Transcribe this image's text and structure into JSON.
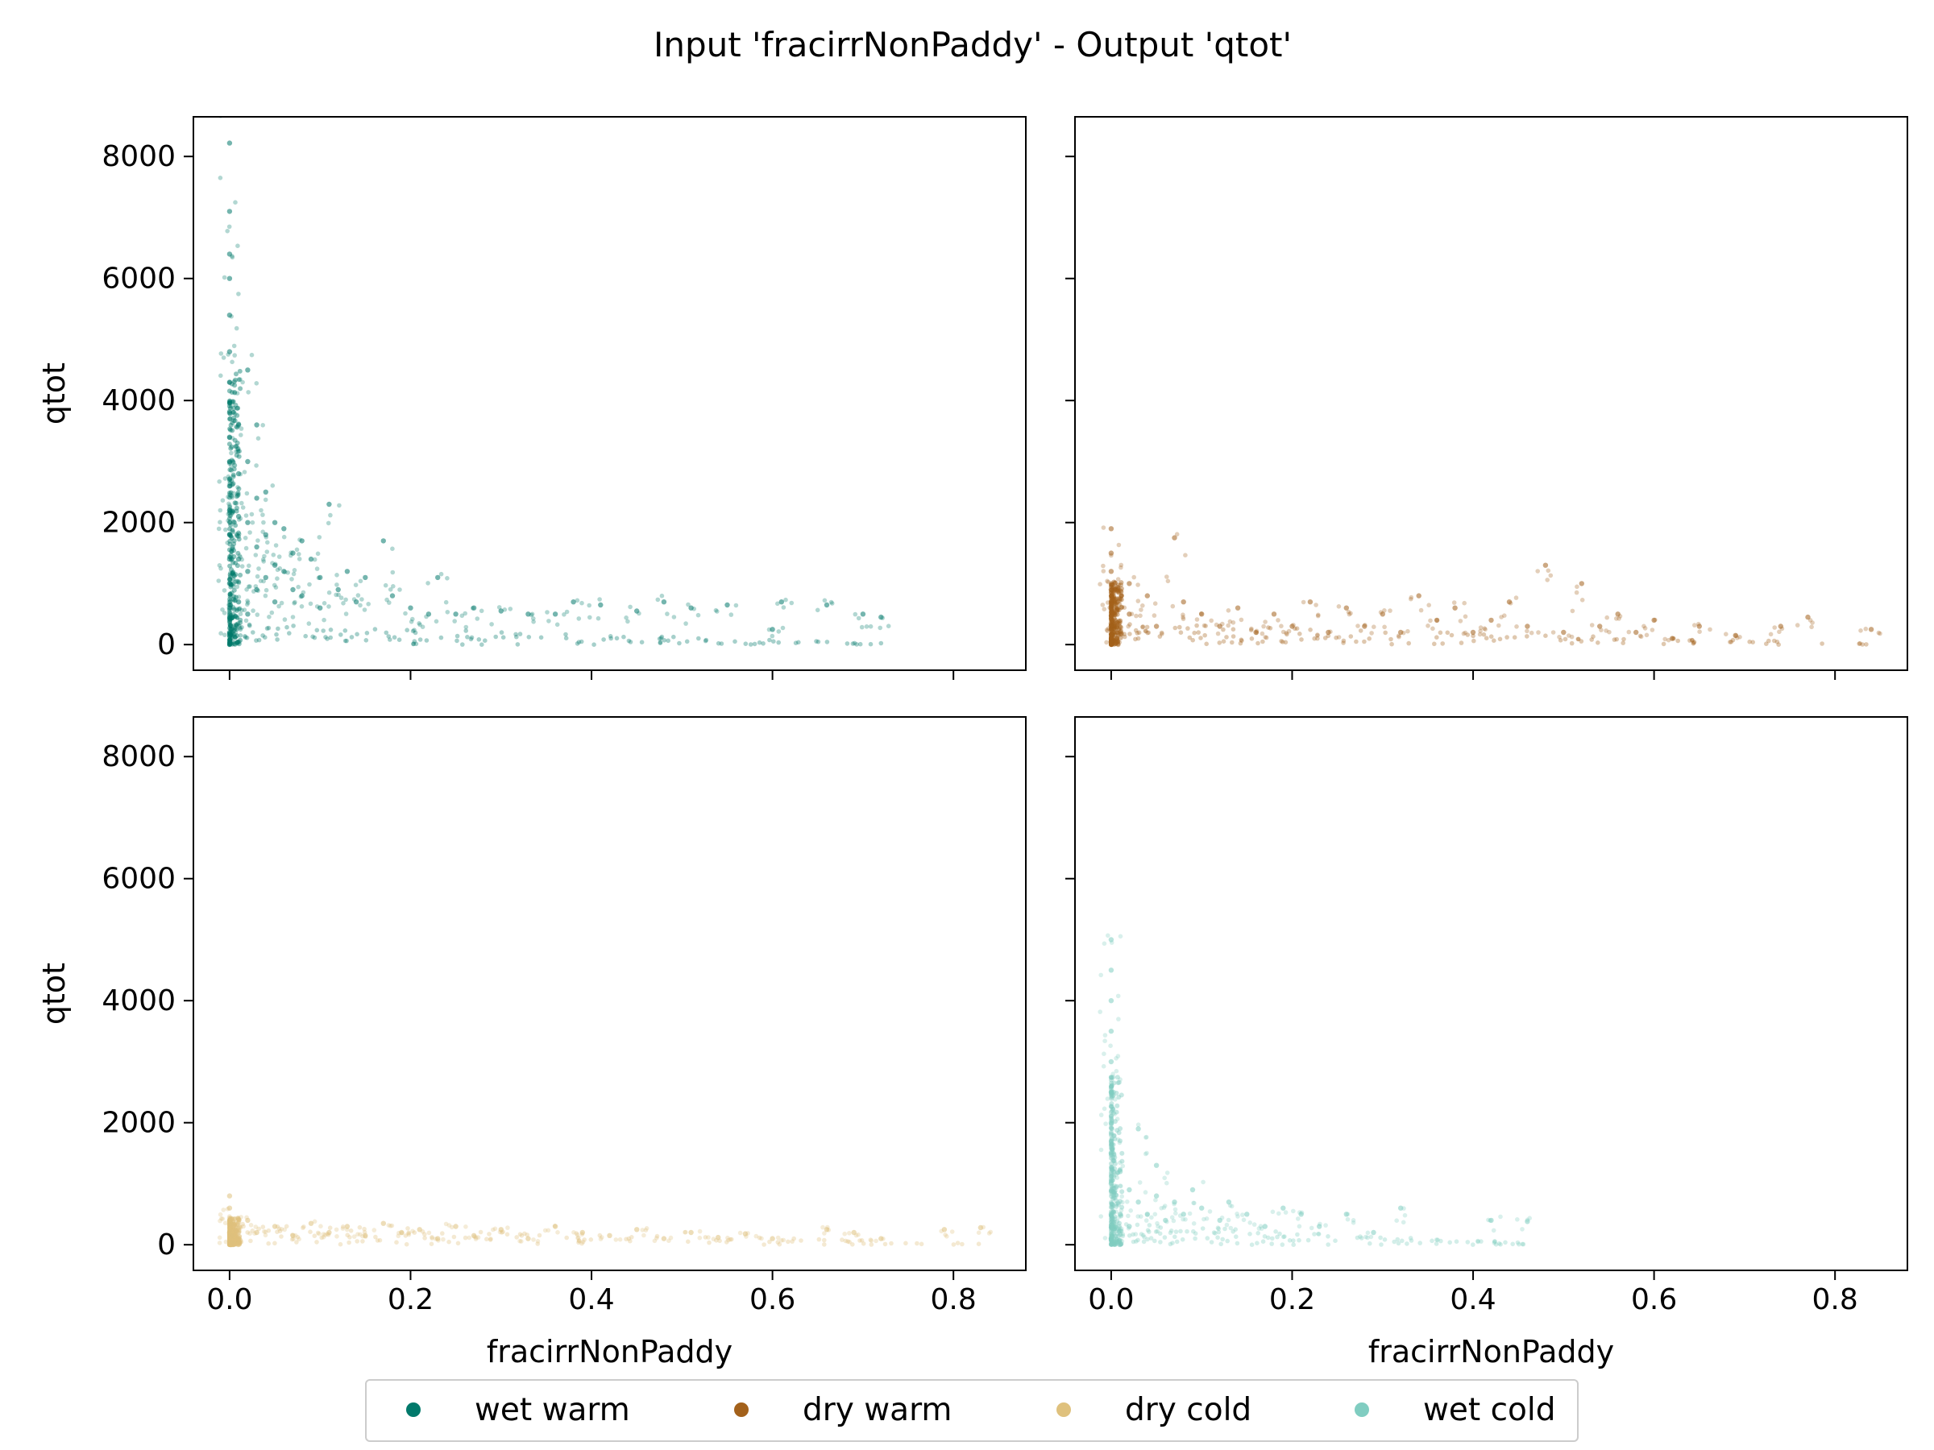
{
  "figure": {
    "title": "Input 'fracirrNonPaddy' - Output 'qtot'"
  },
  "legend": {
    "placement": "bottom-center",
    "items": [
      {
        "label": "wet warm",
        "color": "#01796b"
      },
      {
        "label": "dry warm",
        "color": "#a3611b"
      },
      {
        "label": "dry cold",
        "color": "#dfc17d"
      },
      {
        "label": "wet cold",
        "color": "#80cdc1"
      }
    ]
  },
  "chart_data": [
    {
      "type": "scatter",
      "series": [
        {
          "name": "wet warm",
          "color": "#01796b",
          "points": [
            [
              0,
              8220
            ],
            [
              0,
              7100
            ],
            [
              0,
              6400
            ],
            [
              0,
              6000
            ],
            [
              0,
              5400
            ],
            [
              0,
              4800
            ],
            [
              0,
              4300
            ],
            [
              0,
              3800
            ],
            [
              0,
              3400
            ],
            [
              0,
              3000
            ],
            [
              0,
              2600
            ],
            [
              0,
              2200
            ],
            [
              0,
              1800
            ],
            [
              0,
              1400
            ],
            [
              0,
              1000
            ],
            [
              0,
              600
            ],
            [
              0,
              200
            ],
            [
              0.01,
              3600
            ],
            [
              0.01,
              2800
            ],
            [
              0.01,
              2100
            ],
            [
              0.01,
              1400
            ],
            [
              0.01,
              700
            ],
            [
              0.02,
              4500
            ],
            [
              0.02,
              3000
            ],
            [
              0.02,
              2000
            ],
            [
              0.02,
              1200
            ],
            [
              0.02,
              500
            ],
            [
              0.03,
              3600
            ],
            [
              0.03,
              2400
            ],
            [
              0.03,
              1600
            ],
            [
              0.03,
              900
            ],
            [
              0.04,
              2500
            ],
            [
              0.04,
              1800
            ],
            [
              0.04,
              1100
            ],
            [
              0.05,
              2000
            ],
            [
              0.05,
              1300
            ],
            [
              0.05,
              700
            ],
            [
              0.06,
              1900
            ],
            [
              0.06,
              1200
            ],
            [
              0.07,
              1500
            ],
            [
              0.07,
              900
            ],
            [
              0.08,
              1700
            ],
            [
              0.08,
              800
            ],
            [
              0.09,
              1400
            ],
            [
              0.1,
              1100
            ],
            [
              0.1,
              600
            ],
            [
              0.11,
              2300
            ],
            [
              0.12,
              900
            ],
            [
              0.13,
              1200
            ],
            [
              0.14,
              700
            ],
            [
              0.15,
              1100
            ],
            [
              0.17,
              1700
            ],
            [
              0.18,
              800
            ],
            [
              0.2,
              600
            ],
            [
              0.22,
              500
            ],
            [
              0.23,
              1100
            ],
            [
              0.25,
              500
            ],
            [
              0.27,
              600
            ],
            [
              0.3,
              550
            ],
            [
              0.33,
              500
            ],
            [
              0.36,
              500
            ],
            [
              0.38,
              700
            ],
            [
              0.41,
              650
            ],
            [
              0.45,
              550
            ],
            [
              0.48,
              700
            ],
            [
              0.51,
              600
            ],
            [
              0.55,
              650
            ],
            [
              0.6,
              250
            ],
            [
              0.61,
              700
            ],
            [
              0.66,
              650
            ],
            [
              0.7,
              500
            ],
            [
              0.72,
              450
            ]
          ]
        }
      ],
      "xlabel": "",
      "ylabel": "qtot",
      "xlim": [
        -0.04,
        0.88
      ],
      "ylim": [
        -420,
        8650
      ]
    },
    {
      "type": "scatter",
      "series": [
        {
          "name": "dry warm",
          "color": "#a3611b",
          "points": [
            [
              0,
              1900
            ],
            [
              0,
              1500
            ],
            [
              0,
              1200
            ],
            [
              0,
              900
            ],
            [
              0,
              600
            ],
            [
              0,
              300
            ],
            [
              0,
              50
            ],
            [
              0.02,
              1000
            ],
            [
              0.02,
              500
            ],
            [
              0.04,
              800
            ],
            [
              0.05,
              300
            ],
            [
              0.07,
              1750
            ],
            [
              0.08,
              700
            ],
            [
              0.1,
              500
            ],
            [
              0.12,
              300
            ],
            [
              0.14,
              600
            ],
            [
              0.16,
              200
            ],
            [
              0.18,
              500
            ],
            [
              0.2,
              300
            ],
            [
              0.22,
              700
            ],
            [
              0.24,
              200
            ],
            [
              0.26,
              600
            ],
            [
              0.28,
              300
            ],
            [
              0.3,
              500
            ],
            [
              0.32,
              200
            ],
            [
              0.34,
              800
            ],
            [
              0.36,
              400
            ],
            [
              0.38,
              600
            ],
            [
              0.4,
              200
            ],
            [
              0.42,
              400
            ],
            [
              0.44,
              700
            ],
            [
              0.46,
              300
            ],
            [
              0.48,
              1300
            ],
            [
              0.5,
              200
            ],
            [
              0.52,
              1000
            ],
            [
              0.54,
              300
            ],
            [
              0.56,
              500
            ],
            [
              0.58,
              200
            ],
            [
              0.6,
              400
            ],
            [
              0.62,
              100
            ],
            [
              0.65,
              300
            ],
            [
              0.69,
              150
            ],
            [
              0.74,
              300
            ],
            [
              0.77,
              450
            ],
            [
              0.84,
              250
            ]
          ]
        }
      ],
      "xlabel": "",
      "ylabel": "",
      "xlim": [
        -0.04,
        0.88
      ],
      "ylim": [
        -420,
        8650
      ]
    },
    {
      "type": "scatter",
      "series": [
        {
          "name": "dry cold",
          "color": "#dfc17d",
          "points": [
            [
              0,
              800
            ],
            [
              0,
              600
            ],
            [
              0,
              400
            ],
            [
              0,
              200
            ],
            [
              0,
              50
            ],
            [
              0.02,
              400
            ],
            [
              0.03,
              200
            ],
            [
              0.05,
              300
            ],
            [
              0.07,
              150
            ],
            [
              0.09,
              350
            ],
            [
              0.11,
              200
            ],
            [
              0.13,
              300
            ],
            [
              0.15,
              150
            ],
            [
              0.17,
              350
            ],
            [
              0.19,
              200
            ],
            [
              0.21,
              250
            ],
            [
              0.23,
              100
            ],
            [
              0.25,
              300
            ],
            [
              0.27,
              150
            ],
            [
              0.3,
              250
            ],
            [
              0.33,
              100
            ],
            [
              0.36,
              300
            ],
            [
              0.39,
              200
            ],
            [
              0.42,
              150
            ],
            [
              0.45,
              250
            ],
            [
              0.48,
              100
            ],
            [
              0.51,
              200
            ],
            [
              0.54,
              120
            ],
            [
              0.57,
              180
            ],
            [
              0.6,
              100
            ],
            [
              0.66,
              250
            ],
            [
              0.69,
              200
            ],
            [
              0.72,
              100
            ],
            [
              0.79,
              250
            ],
            [
              0.83,
              280
            ]
          ]
        }
      ],
      "xlabel": "fracirrNonPaddy",
      "ylabel": "qtot",
      "xlim": [
        -0.04,
        0.88
      ],
      "ylim": [
        -420,
        8650
      ]
    },
    {
      "type": "scatter",
      "series": [
        {
          "name": "wet cold",
          "color": "#80cdc1",
          "points": [
            [
              0,
              5000
            ],
            [
              0,
              4500
            ],
            [
              0,
              4000
            ],
            [
              0,
              3500
            ],
            [
              0,
              3000
            ],
            [
              0,
              2500
            ],
            [
              0,
              2000
            ],
            [
              0,
              1500
            ],
            [
              0,
              1000
            ],
            [
              0,
              500
            ],
            [
              0,
              100
            ],
            [
              0.01,
              1200
            ],
            [
              0.01,
              500
            ],
            [
              0.02,
              900
            ],
            [
              0.02,
              300
            ],
            [
              0.03,
              1900
            ],
            [
              0.03,
              700
            ],
            [
              0.04,
              500
            ],
            [
              0.05,
              1300
            ],
            [
              0.05,
              800
            ],
            [
              0.06,
              400
            ],
            [
              0.07,
              700
            ],
            [
              0.08,
              500
            ],
            [
              0.09,
              900
            ],
            [
              0.1,
              600
            ],
            [
              0.12,
              400
            ],
            [
              0.13,
              700
            ],
            [
              0.15,
              500
            ],
            [
              0.17,
              300
            ],
            [
              0.19,
              600
            ],
            [
              0.21,
              500
            ],
            [
              0.23,
              300
            ],
            [
              0.26,
              500
            ],
            [
              0.29,
              200
            ],
            [
              0.32,
              600
            ],
            [
              0.42,
              400
            ],
            [
              0.46,
              380
            ]
          ]
        }
      ],
      "xlabel": "fracirrNonPaddy",
      "ylabel": "",
      "xlim": [
        -0.04,
        0.88
      ],
      "ylim": [
        -420,
        8650
      ]
    }
  ],
  "axes": {
    "xticks": [
      0.0,
      0.2,
      0.4,
      0.6,
      0.8
    ],
    "xtick_labels": [
      "0.0",
      "0.2",
      "0.4",
      "0.6",
      "0.8"
    ],
    "yticks": [
      0,
      2000,
      4000,
      6000,
      8000
    ],
    "ytick_labels": [
      "0",
      "2000",
      "4000",
      "6000",
      "8000"
    ]
  }
}
